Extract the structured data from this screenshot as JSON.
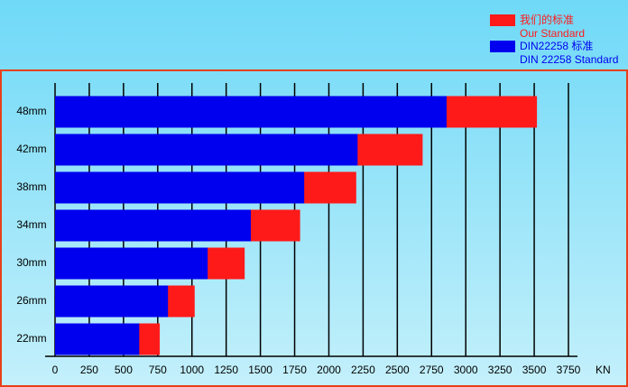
{
  "chart_data": {
    "type": "bar",
    "orientation": "horizontal",
    "categories": [
      "48mm",
      "42mm",
      "38mm",
      "34mm",
      "30mm",
      "26mm",
      "22mm"
    ],
    "series": [
      {
        "name": "我们的标准",
        "name_en": "Our Standard",
        "color": "#ff1a1a",
        "values": [
          3520,
          2685,
          2200,
          1790,
          1385,
          1020,
          765
        ]
      },
      {
        "name": "DIN22258 标准",
        "name_en": "DIN 22258 Standard",
        "color": "#0000ee",
        "values": [
          2860,
          2210,
          1820,
          1430,
          1115,
          825,
          615
        ]
      }
    ],
    "xlim": [
      0,
      3750
    ],
    "xticks": [
      0,
      250,
      500,
      750,
      1000,
      1250,
      1500,
      1750,
      2000,
      2250,
      2500,
      2750,
      3000,
      3250,
      3500,
      3750
    ],
    "x_unit": "KN",
    "grid": true
  }
}
